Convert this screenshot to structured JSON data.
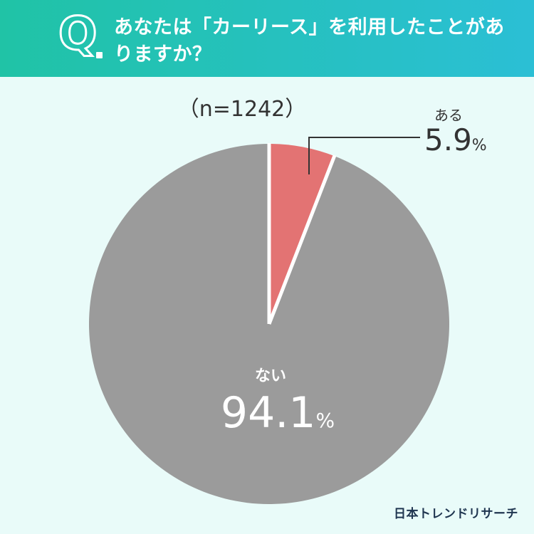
{
  "header": {
    "q_mark": "Q",
    "question": "あなたは「カーリース」を利用したことがありますか？"
  },
  "sample_size": "（n=1242）",
  "chart_data": {
    "type": "pie",
    "slices": [
      {
        "label": "ある",
        "value": 5.9,
        "display_value": "5.9",
        "unit": "%",
        "color": "#e37373"
      },
      {
        "label": "ない",
        "value": 94.1,
        "display_value": "94.1",
        "unit": "%",
        "color": "#9b9b9b"
      }
    ]
  },
  "branding": "日本トレンドリサーチ",
  "colors": {
    "background": "#e9fbf9",
    "header_start": "#20c3a6",
    "header_end": "#2bbfd5",
    "separator": "#ffffff",
    "leader_line": "#333333"
  }
}
